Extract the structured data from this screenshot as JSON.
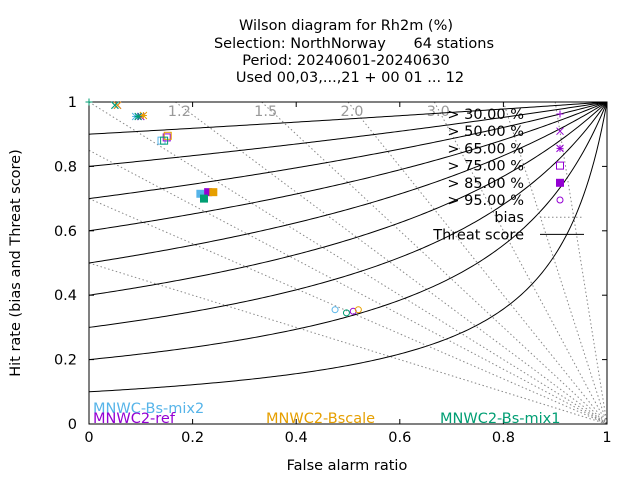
{
  "title_lines": [
    "Wilson diagram  for Rh2m (%)",
    "Selection: NorthNorway      64 stations",
    "Period: 20240601-20240630",
    "Used 00,03,...,21 + 00 01 ... 12"
  ],
  "chart_data": {
    "type": "scatter",
    "xlabel": "False alarm ratio",
    "ylabel": "Hit rate (bias and Threat score)",
    "xlim": [
      0,
      1
    ],
    "ylim": [
      0,
      1
    ],
    "x_ticks": [
      "0",
      "0.2",
      "0.4",
      "0.6",
      "0.8",
      "1"
    ],
    "y_ticks": [
      "0",
      "0.2",
      "0.4",
      "0.6",
      "0.8",
      "1"
    ],
    "bias_values": [
      0.5,
      0.7,
      0.85,
      1.0,
      1.2,
      1.5,
      2.0,
      3.0,
      5.0,
      10.0
    ],
    "bias_labels": [
      "1.2",
      "1.5",
      "2.0",
      "3.0"
    ],
    "threat_scores": [
      0.1,
      0.2,
      0.3,
      0.4,
      0.5,
      0.6,
      0.7,
      0.8,
      0.9
    ],
    "legend": [
      {
        "label": "> 30.00 %",
        "marker": "plus"
      },
      {
        "label": "> 50.00 %",
        "marker": "cross"
      },
      {
        "label": "> 65.00 %",
        "marker": "star"
      },
      {
        "label": "> 75.00 %",
        "marker": "square"
      },
      {
        "label": "> 85.00 %",
        "marker": "filled-square"
      },
      {
        "label": "> 95.00 %",
        "marker": "circle"
      },
      {
        "label": "bias",
        "marker": "dotted-line"
      },
      {
        "label": "Threat score",
        "marker": "solid-line"
      }
    ],
    "series": [
      {
        "name": "MNWC-Bs-mix2",
        "color": "#56b4e9",
        "points": [
          {
            "x": 0.0,
            "y": 1.0,
            "marker": "plus"
          },
          {
            "x": 0.05,
            "y": 0.99,
            "marker": "cross"
          },
          {
            "x": 0.09,
            "y": 0.955,
            "marker": "star"
          },
          {
            "x": 0.14,
            "y": 0.88,
            "marker": "square"
          },
          {
            "x": 0.215,
            "y": 0.715,
            "marker": "filled-square"
          },
          {
            "x": 0.475,
            "y": 0.355,
            "marker": "circle"
          }
        ]
      },
      {
        "name": "MNWC2-ref",
        "color": "#9400d3",
        "points": [
          {
            "x": 0.0,
            "y": 1.0,
            "marker": "plus"
          },
          {
            "x": 0.055,
            "y": 0.99,
            "marker": "cross"
          },
          {
            "x": 0.1,
            "y": 0.955,
            "marker": "star"
          },
          {
            "x": 0.15,
            "y": 0.89,
            "marker": "square"
          },
          {
            "x": 0.23,
            "y": 0.72,
            "marker": "filled-square"
          },
          {
            "x": 0.51,
            "y": 0.35,
            "marker": "circle"
          }
        ]
      },
      {
        "name": "MNWC2-Bscale",
        "color": "#e69f00",
        "points": [
          {
            "x": 0.0,
            "y": 1.0,
            "marker": "plus"
          },
          {
            "x": 0.055,
            "y": 0.99,
            "marker": "cross"
          },
          {
            "x": 0.105,
            "y": 0.958,
            "marker": "star"
          },
          {
            "x": 0.152,
            "y": 0.895,
            "marker": "square"
          },
          {
            "x": 0.24,
            "y": 0.72,
            "marker": "filled-square"
          },
          {
            "x": 0.52,
            "y": 0.355,
            "marker": "circle"
          }
        ]
      },
      {
        "name": "MNWC2-Bs-mix1",
        "color": "#009e73",
        "points": [
          {
            "x": 0.0,
            "y": 1.0,
            "marker": "plus"
          },
          {
            "x": 0.05,
            "y": 0.99,
            "marker": "cross"
          },
          {
            "x": 0.095,
            "y": 0.955,
            "marker": "star"
          },
          {
            "x": 0.145,
            "y": 0.88,
            "marker": "square"
          },
          {
            "x": 0.222,
            "y": 0.7,
            "marker": "filled-square"
          },
          {
            "x": 0.497,
            "y": 0.345,
            "marker": "circle"
          }
        ]
      }
    ]
  }
}
